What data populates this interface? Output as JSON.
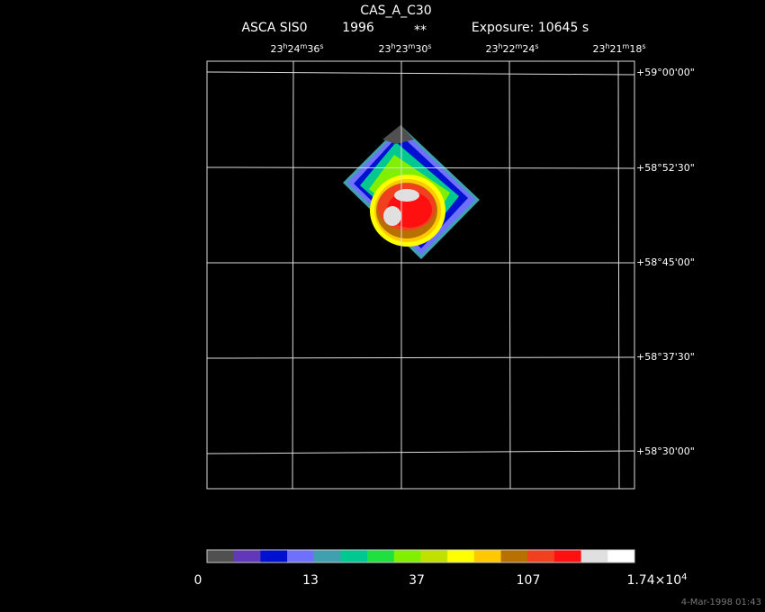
{
  "header": {
    "title": "CAS_A_C30",
    "instrument": "ASCA SIS0",
    "year": "1996",
    "flag": "**",
    "exposure": "Exposure: 10645 s"
  },
  "ra_labels": [
    [
      "23",
      "h",
      "24",
      "m",
      "36",
      "s"
    ],
    [
      "23",
      "h",
      "23",
      "m",
      "30",
      "s"
    ],
    [
      "23",
      "h",
      "22",
      "m",
      "24",
      "s"
    ],
    [
      "23",
      "h",
      "21",
      "m",
      "18",
      "s"
    ]
  ],
  "dec_labels": [
    "+59°00'00\"",
    "+58°52'30\"",
    "+58°45'00\"",
    "+58°37'30\"",
    "+58°30'00\""
  ],
  "colorbar": {
    "colors": [
      "#505050",
      "#6038b8",
      "#0010d0",
      "#7070ff",
      "#40a0b0",
      "#00c890",
      "#20e040",
      "#80f000",
      "#c0e000",
      "#ffff00",
      "#ffc800",
      "#b87000",
      "#f04020",
      "#ff1010",
      "#e0e0e0",
      "#ffffff"
    ],
    "labels": [
      [
        "0"
      ],
      [
        "13"
      ],
      [
        "37"
      ],
      [
        "107"
      ],
      [
        "1.74×10",
        "4"
      ]
    ]
  },
  "timestamp": "4-Mar-1998 01:43"
}
